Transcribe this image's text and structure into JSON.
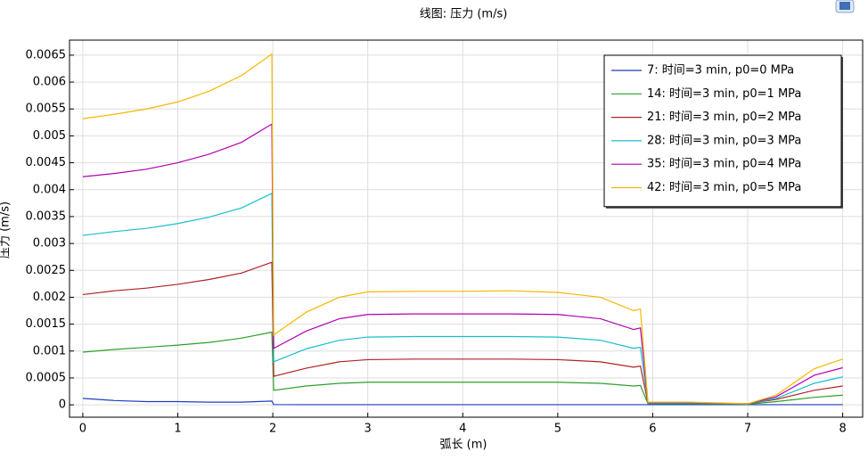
{
  "chart_data": {
    "type": "line",
    "title": "线图: 压力 (m/s)",
    "xlabel": "弧长 (m)",
    "ylabel": "压力 (m/s)",
    "x": [
      0,
      0.33,
      0.67,
      1,
      1.33,
      1.67,
      1.99,
      2.01,
      2.35,
      2.7,
      3,
      3.5,
      4,
      4.5,
      5,
      5.45,
      5.8,
      5.87,
      5.95,
      6.4,
      7,
      7.3,
      7.7,
      8
    ],
    "series": [
      {
        "name": "7: 时间=3 min, p0=0 MPa",
        "color": "#1f3fbf",
        "values": [
          0.00012,
          8e-05,
          6e-05,
          6e-05,
          5e-05,
          5e-05,
          7e-05,
          5e-06,
          3e-06,
          3e-06,
          3e-06,
          3e-06,
          3e-06,
          3e-06,
          3e-06,
          3e-06,
          3e-06,
          3e-06,
          3e-06,
          3e-06,
          3e-06,
          3e-06,
          3e-06,
          3e-06
        ]
      },
      {
        "name": "14: 时间=3 min, p0=1 MPa",
        "color": "#2ca02c",
        "values": [
          0.00098,
          0.00103,
          0.00107,
          0.00111,
          0.00116,
          0.00124,
          0.00135,
          0.00027,
          0.00035,
          0.0004,
          0.00042,
          0.00042,
          0.00042,
          0.00042,
          0.00042,
          0.0004,
          0.00035,
          0.00036,
          2e-05,
          2e-05,
          1e-05,
          6e-05,
          0.00014,
          0.00018
        ]
      },
      {
        "name": "21: 时间=3 min, p0=2 MPa",
        "color": "#b22222",
        "values": [
          0.00205,
          0.00212,
          0.00217,
          0.00224,
          0.00233,
          0.00245,
          0.00265,
          0.00053,
          0.00068,
          0.0008,
          0.00084,
          0.00085,
          0.00085,
          0.00085,
          0.00084,
          0.0008,
          0.0007,
          0.00072,
          3e-05,
          3e-05,
          2e-05,
          0.0001,
          0.00027,
          0.00035
        ]
      },
      {
        "name": "28: 时间=3 min, p0=3 MPa",
        "color": "#17becf",
        "values": [
          0.00315,
          0.00322,
          0.00328,
          0.00337,
          0.00349,
          0.00366,
          0.00393,
          0.0008,
          0.00104,
          0.0012,
          0.00126,
          0.00127,
          0.00127,
          0.00127,
          0.00126,
          0.0012,
          0.00105,
          0.00107,
          3e-05,
          3e-05,
          2e-05,
          0.00012,
          0.0004,
          0.00052
        ]
      },
      {
        "name": "35: 时间=3 min, p0=4 MPa",
        "color": "#b000b0",
        "values": [
          0.00424,
          0.0043,
          0.00438,
          0.0045,
          0.00466,
          0.00488,
          0.00522,
          0.00105,
          0.00137,
          0.0016,
          0.00168,
          0.00169,
          0.00169,
          0.00169,
          0.00168,
          0.0016,
          0.0014,
          0.00143,
          4e-05,
          4e-05,
          2e-05,
          0.00015,
          0.00055,
          0.00069
        ]
      },
      {
        "name": "42: 时间=3 min, p0=5 MPa",
        "color": "#f5b800",
        "values": [
          0.00532,
          0.0054,
          0.0055,
          0.00563,
          0.00583,
          0.00612,
          0.00652,
          0.0013,
          0.00172,
          0.002,
          0.0021,
          0.00211,
          0.00211,
          0.00212,
          0.00209,
          0.002,
          0.00175,
          0.00178,
          5e-05,
          5e-05,
          2e-05,
          0.00018,
          0.00067,
          0.00085
        ]
      }
    ],
    "xlim": [
      -0.14,
      8.21
    ],
    "ylim": [
      -0.00023,
      0.00678
    ],
    "xticks": [
      0,
      1,
      2,
      3,
      4,
      5,
      6,
      7,
      8
    ],
    "yticks": [
      0,
      0.0005,
      0.001,
      0.0015,
      0.002,
      0.0025,
      0.003,
      0.0035,
      0.004,
      0.0045,
      0.005,
      0.0055,
      0.006,
      0.0065
    ],
    "grid": true,
    "legend": "upper right"
  }
}
